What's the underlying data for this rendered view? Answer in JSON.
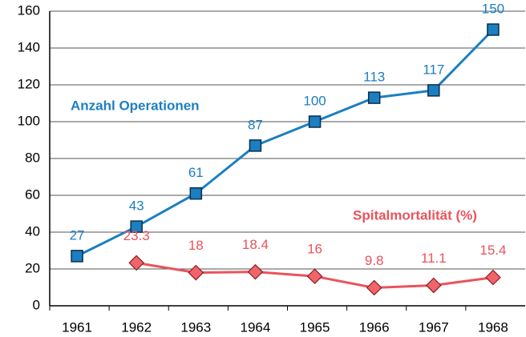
{
  "chart_data": {
    "type": "line",
    "categories": [
      "1961",
      "1962",
      "1963",
      "1964",
      "1965",
      "1966",
      "1967",
      "1968"
    ],
    "series": [
      {
        "name": "Anzahl Operationen",
        "color": "#1b7fc1",
        "marker": "square",
        "values": [
          27,
          43,
          61,
          87,
          100,
          113,
          117,
          150
        ]
      },
      {
        "name": "Spitalmortalität (%)",
        "color": "#e9535c",
        "marker": "diamond",
        "values": [
          null,
          23.3,
          18,
          18.4,
          16,
          9.8,
          11.1,
          15.4
        ]
      }
    ],
    "ylim": [
      0,
      160
    ],
    "yticks": [
      0,
      20,
      40,
      60,
      80,
      100,
      120,
      140,
      160
    ],
    "grid": true
  }
}
